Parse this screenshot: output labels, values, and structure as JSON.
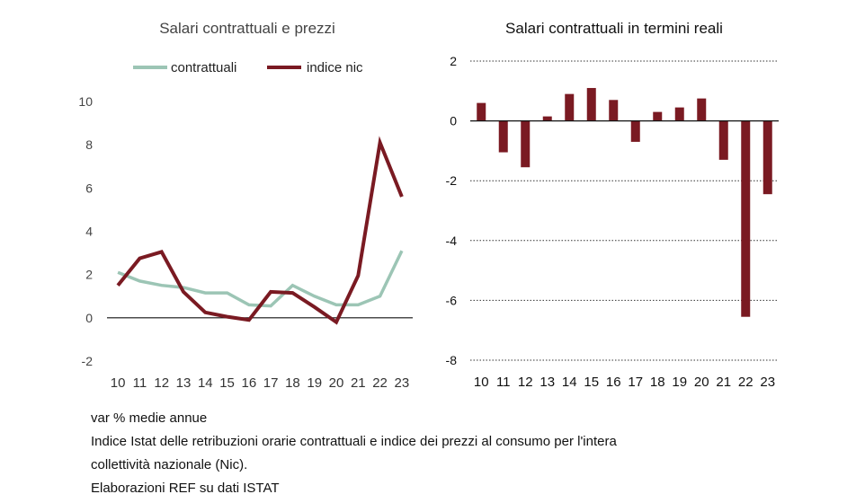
{
  "chart_data": [
    {
      "type": "line",
      "title": "Salari contrattuali e prezzi",
      "categories": [
        "10",
        "11",
        "12",
        "13",
        "14",
        "15",
        "16",
        "17",
        "18",
        "19",
        "20",
        "21",
        "22",
        "23"
      ],
      "ylim": [
        -2,
        10
      ],
      "yticks": [
        -2,
        0,
        2,
        4,
        6,
        8,
        10
      ],
      "grid": false,
      "legend": "top",
      "series": [
        {
          "name": "contrattuali",
          "color": "#9cc5b5",
          "values": [
            2.1,
            1.7,
            1.5,
            1.4,
            1.15,
            1.15,
            0.6,
            0.55,
            1.5,
            1.0,
            0.6,
            0.6,
            1.0,
            3.1
          ]
        },
        {
          "name": "indice nic",
          "color": "#7a1a22",
          "values": [
            1.5,
            2.75,
            3.05,
            1.2,
            0.25,
            0.05,
            -0.1,
            1.2,
            1.15,
            0.5,
            -0.2,
            1.95,
            8.1,
            5.6
          ]
        }
      ]
    },
    {
      "type": "bar",
      "title": "Salari contrattuali in termini reali",
      "categories": [
        "10",
        "11",
        "12",
        "13",
        "14",
        "15",
        "16",
        "17",
        "18",
        "19",
        "20",
        "21",
        "22",
        "23"
      ],
      "values": [
        0.6,
        -1.05,
        -1.55,
        0.15,
        0.9,
        1.1,
        0.7,
        -0.7,
        0.3,
        0.45,
        0.75,
        -1.3,
        -6.55,
        -2.45
      ],
      "color": "#7a1a22",
      "ylim": [
        -8,
        2
      ],
      "yticks": [
        -8,
        -6,
        -4,
        -2,
        0,
        2
      ],
      "grid": "dotted"
    }
  ],
  "notes": [
    "var % medie annue",
    "Indice Istat  delle retribuzioni orarie contrattuali e indice dei prezzi al consumo per l'intera",
    "collettività nazionale (Nic).",
    "Elaborazioni REF su dati ISTAT"
  ]
}
